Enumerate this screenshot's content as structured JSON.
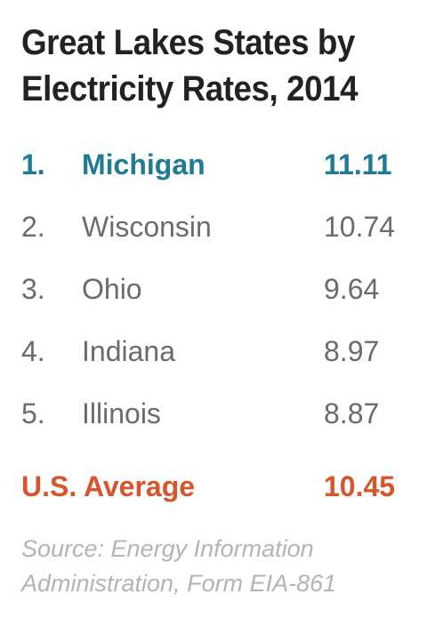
{
  "title": {
    "line1": "Great Lakes States by",
    "line2": "Electricity Rates, 2014"
  },
  "colors": {
    "title": "#222222",
    "highlight": "#1f7a93",
    "average": "#d9542a",
    "body_text": "#6b6b6b",
    "source": "#b4b4b4"
  },
  "rankings": [
    {
      "rank": "1.",
      "state": "Michigan",
      "rate": "11.11"
    },
    {
      "rank": "2.",
      "state": "Wisconsin",
      "rate": "10.74"
    },
    {
      "rank": "3.",
      "state": "Ohio",
      "rate": "9.64"
    },
    {
      "rank": "4.",
      "state": "Indiana",
      "rate": "8.97"
    },
    {
      "rank": "5.",
      "state": "Illinois",
      "rate": "8.87"
    }
  ],
  "average": {
    "label": "U.S. Average",
    "rate": "10.45"
  },
  "source": {
    "line1": "Source: Energy Information",
    "line2": "Administration, Form EIA-861"
  }
}
